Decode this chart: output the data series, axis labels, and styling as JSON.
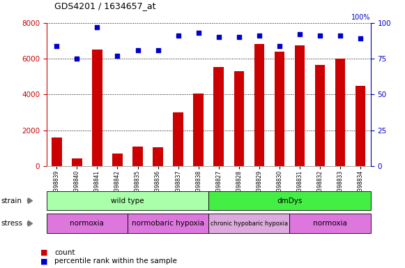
{
  "title": "GDS4201 / 1634657_at",
  "categories": [
    "GSM398839",
    "GSM398840",
    "GSM398841",
    "GSM398842",
    "GSM398835",
    "GSM398836",
    "GSM398837",
    "GSM398838",
    "GSM398827",
    "GSM398828",
    "GSM398829",
    "GSM398830",
    "GSM398831",
    "GSM398832",
    "GSM398833",
    "GSM398834"
  ],
  "counts": [
    1600,
    450,
    6500,
    700,
    1100,
    1050,
    3000,
    4050,
    5550,
    5300,
    6800,
    6400,
    6750,
    5650,
    6000,
    4500
  ],
  "percentile": [
    84,
    75,
    97,
    77,
    81,
    81,
    91,
    93,
    90,
    90,
    91,
    84,
    92,
    91,
    91,
    89
  ],
  "bar_color": "#cc0000",
  "dot_color": "#0000cc",
  "ylim_left": [
    0,
    8000
  ],
  "ylim_right": [
    0,
    100
  ],
  "yticks_left": [
    0,
    2000,
    4000,
    6000,
    8000
  ],
  "yticks_right": [
    0,
    25,
    50,
    75,
    100
  ],
  "strain_groups": [
    {
      "label": "wild type",
      "start": 0,
      "end": 8,
      "color": "#aaffaa"
    },
    {
      "label": "dmDys",
      "start": 8,
      "end": 16,
      "color": "#44ee44"
    }
  ],
  "stress_groups": [
    {
      "label": "normoxia",
      "start": 0,
      "end": 4,
      "color": "#dd77dd"
    },
    {
      "label": "normobaric hypoxia",
      "start": 4,
      "end": 8,
      "color": "#dd77dd"
    },
    {
      "label": "chronic hypobaric hypoxia",
      "start": 8,
      "end": 12,
      "color": "#ddaadd"
    },
    {
      "label": "normoxia",
      "start": 12,
      "end": 16,
      "color": "#dd77dd"
    }
  ],
  "grid_color": "black",
  "background_color": "#ffffff",
  "tick_label_color": "#cc0000",
  "right_tick_color": "#0000cc"
}
